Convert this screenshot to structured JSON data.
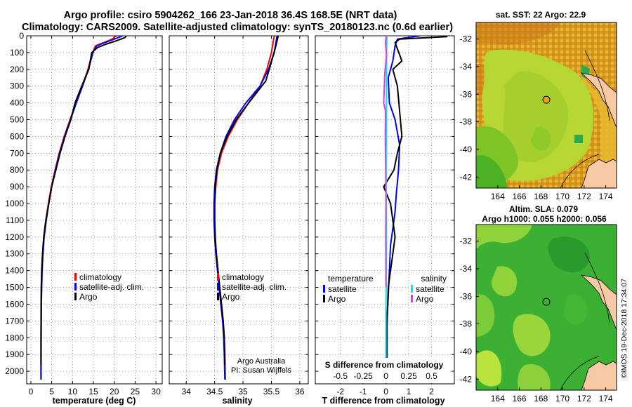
{
  "header": {
    "line1": "Argo profile: csiro 5904262_166 23-Jan-2018 36.4S 168.5E (NRT data)",
    "line2": "Climatology: CARS2009. Satellite-adjusted climatology: synTS_20180123.nc (0.6d earlier)"
  },
  "colors": {
    "climatology": "#ff0000",
    "satellite": "#0000ff",
    "argo": "#000000",
    "sat_salinity": "#00e5ee",
    "argo_salinity": "#e040e0",
    "land": "#f7c9a4"
  },
  "chart_data": [
    {
      "type": "line",
      "panel": "temperature",
      "xlabel": "temperature (deg C)",
      "ylabel": "",
      "xlim": [
        -1,
        31.5
      ],
      "ylim": [
        2075,
        0
      ],
      "xticks": [
        0,
        5,
        10,
        15,
        20,
        25,
        30
      ],
      "yticks": [
        0,
        100,
        200,
        300,
        400,
        500,
        600,
        700,
        800,
        900,
        1000,
        1100,
        1200,
        1300,
        1400,
        1500,
        1600,
        1700,
        1800,
        1900,
        2000
      ],
      "legend": [
        "climatology",
        "satellite-adj. clim.",
        "Argo"
      ],
      "series": [
        {
          "name": "climatology",
          "x": [
            20.5,
            19.5,
            17.5,
            15.5,
            14.8,
            13.7,
            12.3,
            10.8,
            9.4,
            8.0,
            6.8,
            5.8,
            4.9,
            4.2,
            3.6,
            3.1,
            2.8,
            2.6,
            2.5,
            2.45,
            2.4,
            2.4
          ],
          "y": [
            0,
            20,
            40,
            60,
            100,
            200,
            300,
            400,
            500,
            600,
            700,
            800,
            900,
            1000,
            1100,
            1200,
            1300,
            1400,
            1500,
            1600,
            1800,
            2050
          ]
        },
        {
          "name": "satellite-adj. clim.",
          "x": [
            22.0,
            20.0,
            17.8,
            15.8,
            14.9,
            13.8,
            12.4,
            10.9,
            9.5,
            8.1,
            6.9,
            5.9,
            5.0,
            4.3,
            3.7,
            3.2,
            2.9,
            2.7,
            2.6,
            2.5,
            2.45,
            2.45
          ],
          "y": [
            0,
            20,
            40,
            60,
            100,
            200,
            300,
            400,
            500,
            600,
            700,
            800,
            900,
            1000,
            1100,
            1200,
            1300,
            1400,
            1500,
            1600,
            1800,
            2050
          ]
        },
        {
          "name": "Argo",
          "x": [
            22.9,
            22.6,
            20.5,
            18.0,
            16.0,
            14.6,
            13.9,
            12.2,
            10.6,
            9.6,
            8.2,
            7.0,
            6.0,
            5.0,
            4.3,
            3.6,
            3.1,
            2.8,
            2.6,
            2.5,
            2.45
          ],
          "y": [
            0,
            10,
            30,
            50,
            70,
            100,
            200,
            300,
            400,
            500,
            600,
            700,
            800,
            900,
            1000,
            1100,
            1200,
            1300,
            1400,
            1500,
            1960
          ]
        }
      ]
    },
    {
      "type": "line",
      "panel": "salinity",
      "xlabel": "salinity",
      "ylabel": "",
      "xlim": [
        33.7,
        36.15
      ],
      "ylim": [
        2075,
        0
      ],
      "xticks": [
        34,
        34.5,
        35,
        35.5,
        36
      ],
      "legend": [
        "climatology",
        "satellite-adj. clim.",
        "Argo"
      ],
      "annotation": [
        "Argo Australia",
        "PI: Susan Wijffels"
      ],
      "series": [
        {
          "name": "climatology",
          "x": [
            35.55,
            35.5,
            35.42,
            35.3,
            35.1,
            34.9,
            34.74,
            34.62,
            34.55,
            34.52,
            34.5,
            34.5,
            34.51,
            34.53,
            34.56,
            34.59,
            34.62,
            34.65,
            34.67,
            34.68,
            34.69
          ],
          "y": [
            0,
            100,
            200,
            300,
            400,
            500,
            600,
            700,
            800,
            900,
            1000,
            1100,
            1200,
            1300,
            1400,
            1500,
            1600,
            1700,
            1800,
            1900,
            2050
          ]
        },
        {
          "name": "satellite-adj. clim.",
          "x": [
            35.6,
            35.55,
            35.45,
            35.3,
            35.05,
            34.85,
            34.7,
            34.6,
            34.53,
            34.5,
            34.49,
            34.49,
            34.5,
            34.52,
            34.55,
            34.58,
            34.61,
            34.64,
            34.66,
            34.67,
            34.68
          ],
          "y": [
            0,
            100,
            200,
            300,
            400,
            500,
            600,
            700,
            800,
            900,
            1000,
            1100,
            1200,
            1300,
            1400,
            1500,
            1600,
            1700,
            1800,
            1900,
            2050
          ]
        },
        {
          "name": "Argo",
          "x": [
            35.62,
            35.58,
            35.48,
            35.4,
            35.1,
            34.88,
            34.72,
            34.6,
            34.54,
            34.51,
            34.5,
            34.5,
            34.51,
            34.53,
            34.56,
            34.59,
            34.62,
            34.65,
            34.67,
            34.68
          ],
          "y": [
            0,
            60,
            180,
            270,
            400,
            500,
            600,
            700,
            800,
            900,
            1000,
            1100,
            1200,
            1300,
            1400,
            1500,
            1600,
            1700,
            1800,
            1960
          ]
        }
      ]
    },
    {
      "type": "line",
      "panel": "difference",
      "xlabel": "T difference from climatology",
      "xlabel_top": "S difference from climatology",
      "xlim": [
        -3.1,
        3.0
      ],
      "ylim": [
        2075,
        0
      ],
      "xticks": [
        -2,
        -1,
        0,
        1,
        2
      ],
      "xticks_top": [
        "-0.5",
        "-0.25",
        "0",
        "0.25",
        "0.5"
      ],
      "legend_headers": [
        "temperature",
        "salinity"
      ],
      "legend": [
        "satellite",
        "Argo",
        "satellite",
        "Argo"
      ],
      "series": [
        {
          "name": "temperature satellite",
          "x": [
            1.5,
            0.5,
            0.4,
            0.3,
            0.1,
            0.15,
            0.4,
            0.6,
            0.55,
            0.45,
            0.4,
            0.3,
            0.2,
            0.15,
            0.1,
            0.05,
            0.05,
            0.05,
            0.03
          ],
          "y": [
            0,
            20,
            60,
            150,
            250,
            400,
            500,
            650,
            800,
            950,
            1050,
            1150,
            1250,
            1400,
            1550,
            1700,
            1800,
            1900,
            2050
          ]
        },
        {
          "name": "temperature Argo",
          "x": [
            2.7,
            0.6,
            0.4,
            0.7,
            0.3,
            0.5,
            0.6,
            0.7,
            0.5,
            0.35,
            -0.1,
            0.2,
            0.3,
            0.4,
            0.3,
            0.2,
            0.1,
            0.05,
            0.0
          ],
          "y": [
            5,
            20,
            40,
            150,
            200,
            300,
            450,
            600,
            700,
            800,
            900,
            1000,
            1100,
            1200,
            1300,
            1400,
            1500,
            1700,
            1960
          ]
        },
        {
          "name": "salinity satellite",
          "x": [
            0.04,
            0.03,
            0.02,
            0.02,
            0.01,
            0.01,
            0.02,
            0.02,
            0.01,
            0.0,
            0.0,
            0.0,
            0.0
          ],
          "y": [
            0,
            100,
            300,
            500,
            700,
            900,
            1100,
            1300,
            1500,
            1600,
            1800,
            1900,
            2050
          ]
        },
        {
          "name": "salinity Argo",
          "x": [
            0.01,
            -0.02,
            0.02,
            -0.05,
            -0.1,
            -0.02,
            -0.03,
            -0.01,
            0.0,
            -0.01,
            0.0
          ],
          "y": [
            0,
            40,
            120,
            220,
            400,
            450,
            600,
            800,
            1000,
            1200,
            1500
          ]
        }
      ]
    },
    {
      "type": "heatmap",
      "panel": "sst-map",
      "title": "sat. SST: 22 Argo: 22.9",
      "xticks": [
        164,
        166,
        168,
        170,
        172,
        174
      ],
      "yticks": [
        -32,
        -34,
        -36,
        -38,
        -40,
        -42
      ],
      "xlim": [
        162,
        175
      ],
      "ylim": [
        -42.8,
        -30.8
      ],
      "marker": {
        "lon": 168.5,
        "lat": -36.4
      }
    },
    {
      "type": "heatmap",
      "panel": "sla-map",
      "title": "Altim. SLA: 0.079",
      "subtitle": "Argo h1000: 0.055 h2000: 0.056",
      "xticks": [
        164,
        166,
        168,
        170,
        172,
        174
      ],
      "yticks": [
        -32,
        -34,
        -36,
        -38,
        -40,
        -42
      ],
      "xlim": [
        162,
        175
      ],
      "ylim": [
        -42.8,
        -30.8
      ],
      "marker": {
        "lon": 168.5,
        "lat": -36.4
      }
    }
  ],
  "footer": {
    "timestamp": "©IMOS 19-Dec-2018 17:34:07"
  }
}
